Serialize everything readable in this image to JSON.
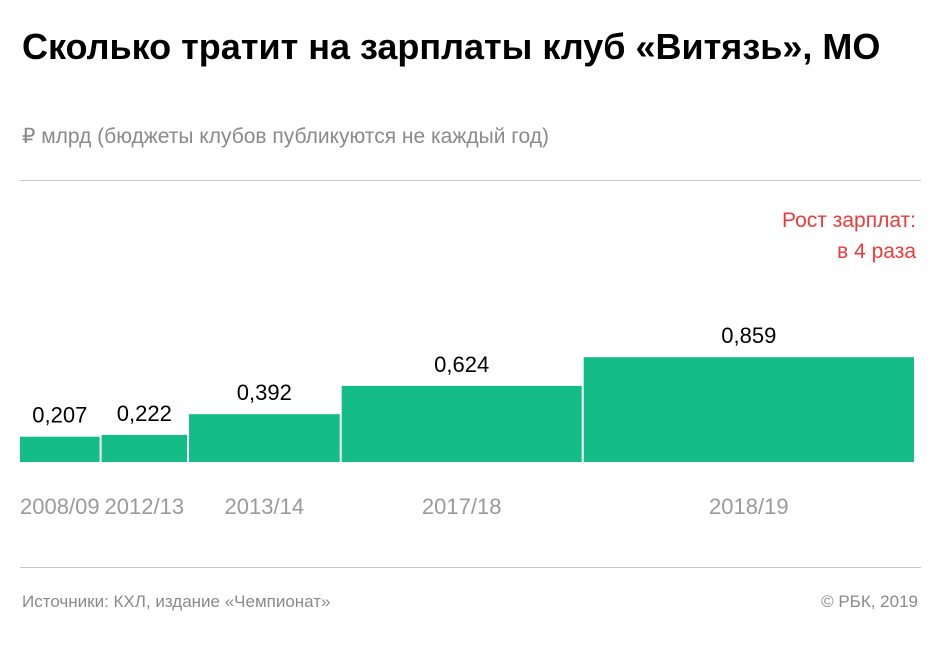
{
  "header": {
    "title": "Сколько тратит на зарплаты клуб «Витязь», МО",
    "subtitle": "₽ млрд (бюджеты клубов публикуются не каждый год)"
  },
  "annotation": {
    "line1": "Рост зарплат:",
    "line2": "в 4 раза",
    "color": "#ef3a3a"
  },
  "footer": {
    "source": "Источники: КХЛ, издание «Чемпионат»",
    "credit": "© РБК, 2019"
  },
  "colors": {
    "bar": "#14bd85",
    "rule": "#c8c8c8"
  },
  "chart_data": {
    "type": "bar",
    "categories": [
      "2008/09",
      "2012/13",
      "2013/14",
      "2017/18",
      "2018/19"
    ],
    "values": [
      0.207,
      0.222,
      0.392,
      0.624,
      0.859
    ],
    "value_labels": [
      "0,207",
      "0,222",
      "0,392",
      "0,624",
      "0,859"
    ],
    "bar_width_mode": "proportional-to-value",
    "title": "Сколько тратит на зарплаты клуб «Витязь», МО",
    "xlabel": "",
    "ylabel": "",
    "grid": false,
    "legend": "none"
  }
}
